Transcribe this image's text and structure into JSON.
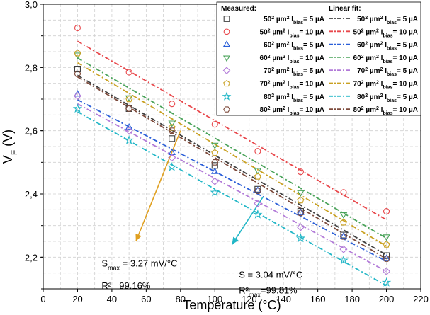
{
  "chart_data": {
    "type": "scatter",
    "xlabel": "Temperature (°C)",
    "ylabel": "V",
    "ylabel_sub": "F",
    "ylabel_unit": "(V)",
    "xlim": [
      0,
      220
    ],
    "ylim": [
      2.1,
      3.0
    ],
    "x_ticks": [
      0,
      20,
      40,
      60,
      80,
      100,
      120,
      140,
      160,
      180,
      200,
      220
    ],
    "x_tick_labels": [
      "0",
      "20",
      "40",
      "60",
      "80",
      "100",
      "120",
      "140",
      "160",
      "180",
      "200",
      "220"
    ],
    "y_ticks": [
      2.2,
      2.4,
      2.6,
      2.8,
      3.0
    ],
    "y_tick_labels": [
      "2,2",
      "2,4",
      "2,6",
      "2,8",
      "3,0"
    ],
    "grid": true,
    "legend": {
      "placement": "top-right",
      "measured_title": "Measured:",
      "fit_title": "Linear fit:",
      "micro": "µm",
      "bias": "bias",
      "entries": [
        {
          "size": "50",
          "current": "= 5 µA"
        },
        {
          "size": "50",
          "current": "= 10 µA"
        },
        {
          "size": "60",
          "current": "= 5 µA"
        },
        {
          "size": "60",
          "current": "= 10 µA"
        },
        {
          "size": "70",
          "current": "= 5 µA"
        },
        {
          "size": "70",
          "current": "= 10 µA"
        },
        {
          "size": "80",
          "current": "= 5 µA"
        },
        {
          "size": "80",
          "current": "= 10 µA"
        }
      ]
    },
    "x": [
      20,
      50,
      75,
      100,
      125,
      150,
      175,
      200
    ],
    "series": [
      {
        "name": "50² µm² Ibias= 5 µA",
        "marker": "square",
        "color": "#404040",
        "values": [
          2.795,
          2.67,
          2.575,
          2.49,
          2.415,
          2.345,
          2.27,
          2.205
        ],
        "fit": [
          2.775,
          2.207
        ]
      },
      {
        "name": "50² µm² Ibias= 10 µA",
        "marker": "circle",
        "color": "#e8474b",
        "values": [
          2.925,
          2.785,
          2.685,
          2.62,
          2.535,
          2.47,
          2.405,
          2.345
        ],
        "fit": [
          2.883,
          2.318
        ]
      },
      {
        "name": "60² µm² Ibias= 5 µA",
        "marker": "triangle-up",
        "color": "#2b5fd8",
        "values": [
          2.715,
          2.61,
          2.53,
          2.47,
          2.41,
          2.34,
          2.265,
          2.195
        ],
        "fit": [
          2.698,
          2.187
        ]
      },
      {
        "name": "60² µm² Ibias= 10 µA",
        "marker": "triangle-down",
        "color": "#4aa35a",
        "values": [
          2.84,
          2.705,
          2.625,
          2.555,
          2.475,
          2.405,
          2.335,
          2.265
        ],
        "fit": [
          2.83,
          2.26
        ]
      },
      {
        "name": "70² µm² Ibias= 5 µA",
        "marker": "diamond",
        "color": "#b27ad8",
        "values": [
          2.71,
          2.6,
          2.515,
          2.44,
          2.37,
          2.295,
          2.225,
          2.155
        ],
        "fit": [
          2.685,
          2.155
        ]
      },
      {
        "name": "70² µm² Ibias= 10 µA",
        "marker": "pentagon",
        "color": "#c9a020",
        "values": [
          2.845,
          2.7,
          2.61,
          2.53,
          2.455,
          2.38,
          2.31,
          2.24
        ],
        "fit": [
          2.815,
          2.235
        ]
      },
      {
        "name": "80² µm² Ibias= 5 µA",
        "marker": "star",
        "color": "#23b7c7",
        "values": [
          2.67,
          2.57,
          2.485,
          2.405,
          2.335,
          2.26,
          2.19,
          2.12
        ],
        "fit": [
          2.66,
          2.11
        ]
      },
      {
        "name": "80² µm² Ibias= 10 µA",
        "marker": "hexagon",
        "color": "#7d4a3b",
        "values": [
          2.78,
          2.67,
          2.6,
          2.5,
          2.41,
          2.34,
          2.265,
          2.195
        ],
        "fit": [
          2.77,
          2.195
        ]
      }
    ],
    "annotations": [
      {
        "line1": "S",
        "line1_sub": "max",
        "line1_rest": " = 3.27 mV/°C",
        "line2": "R² =99.16%",
        "color": "#e0a020",
        "from": [
          80,
          2.6
        ],
        "to": [
          54,
          2.25
        ],
        "text_x": 34,
        "text_y": [
          2.17,
          2.1
        ]
      },
      {
        "line1": "S = 3.04 mV/°C",
        "line2_pre": "R²",
        "line2_sub": "max",
        "line2_rest": "=99.81%",
        "color": "#23b7c7",
        "from": [
          128,
          2.39
        ],
        "to": [
          110,
          2.24
        ],
        "text_x": 114,
        "text_y": [
          2.135,
          2.085
        ]
      }
    ]
  }
}
